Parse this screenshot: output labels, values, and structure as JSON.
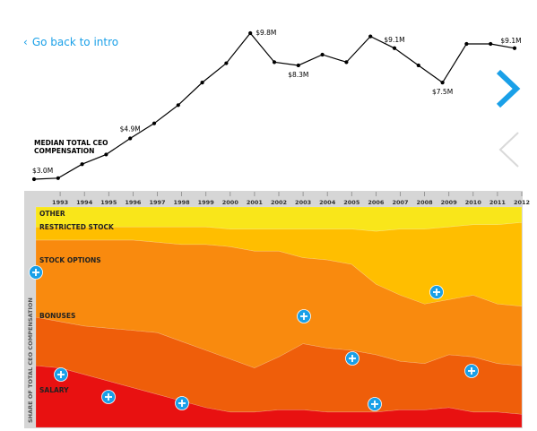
{
  "nav": {
    "back_label": "Go back to intro",
    "next_icon": "chevron-right-icon",
    "prev_icon": "chevron-left-icon"
  },
  "colors": {
    "accent": "#1aa0e8",
    "line": "#000000",
    "other": "#f9e61a",
    "restricted_stock": "#ffbe00",
    "stock_options": "#f98a0e",
    "bonuses": "#ef5e0a",
    "salary": "#e81111",
    "axis_bg": "#d6d6d6"
  },
  "chart_data": [
    {
      "type": "line",
      "title": "MEDIAN TOTAL CEO COMPENSATION",
      "unit": "$M",
      "x": [
        1992,
        1993,
        1994,
        1995,
        1996,
        1997,
        1998,
        1999,
        2000,
        2001,
        2002,
        2003,
        2004,
        2005,
        2006,
        2007,
        2008,
        2009,
        2010,
        2011,
        2012
      ],
      "values": [
        3.0,
        3.05,
        3.7,
        4.15,
        4.9,
        5.6,
        6.45,
        7.5,
        8.4,
        9.8,
        8.45,
        8.3,
        8.8,
        8.45,
        9.65,
        9.1,
        8.3,
        7.5,
        9.3,
        9.3,
        9.1
      ],
      "labels": [
        {
          "x": 1992,
          "text": "$3.0M"
        },
        {
          "x": 1996,
          "text": "$4.9M"
        },
        {
          "x": 2001,
          "text": "$9.8M"
        },
        {
          "x": 2003,
          "text": "$8.3M"
        },
        {
          "x": 2007,
          "text": "$9.1M"
        },
        {
          "x": 2009,
          "text": "$7.5M"
        },
        {
          "x": 2012,
          "text": "$9.1M"
        }
      ]
    },
    {
      "type": "area",
      "stacked": true,
      "ylabel": "SHARE OF TOTAL CEO COMPENSATION",
      "x": [
        1992,
        1993,
        1994,
        1995,
        1996,
        1997,
        1998,
        1999,
        2000,
        2001,
        2002,
        2003,
        2004,
        2005,
        2006,
        2007,
        2008,
        2009,
        2010,
        2011,
        2012
      ],
      "x_tick_labels": [
        "1993",
        "1994",
        "1995",
        "1996",
        "1997",
        "1998",
        "1999",
        "2000",
        "2001",
        "2002",
        "2003",
        "2004",
        "2005",
        "2006",
        "2007",
        "2008",
        "2009",
        "2010",
        "2011",
        "2012"
      ],
      "ylim": [
        0,
        100
      ],
      "series": [
        {
          "name": "SALARY",
          "values": [
            28,
            27,
            24,
            21,
            18,
            15,
            12,
            9,
            7,
            7,
            8,
            8,
            7,
            7,
            7,
            8,
            8,
            9,
            7,
            7,
            6
          ]
        },
        {
          "name": "BONUSES",
          "values": [
            22,
            21,
            22,
            24,
            26,
            28,
            27,
            26,
            24,
            20,
            24,
            30,
            29,
            28,
            26,
            22,
            21,
            24,
            25,
            22,
            22
          ]
        },
        {
          "name": "STOCK OPTIONS",
          "values": [
            35,
            37,
            39,
            40,
            41,
            41,
            44,
            48,
            51,
            53,
            48,
            39,
            40,
            39,
            32,
            30,
            27,
            25,
            28,
            27,
            27
          ]
        },
        {
          "name": "RESTRICTED STOCK",
          "values": [
            6,
            6,
            6,
            6,
            6,
            7,
            8,
            8,
            8,
            10,
            10,
            13,
            14,
            16,
            24,
            30,
            34,
            33,
            32,
            36,
            38
          ]
        },
        {
          "name": "OTHER",
          "values": [
            9,
            9,
            9,
            9,
            9,
            9,
            9,
            9,
            10,
            10,
            10,
            10,
            10,
            10,
            11,
            10,
            10,
            9,
            8,
            8,
            7
          ]
        }
      ]
    }
  ]
}
